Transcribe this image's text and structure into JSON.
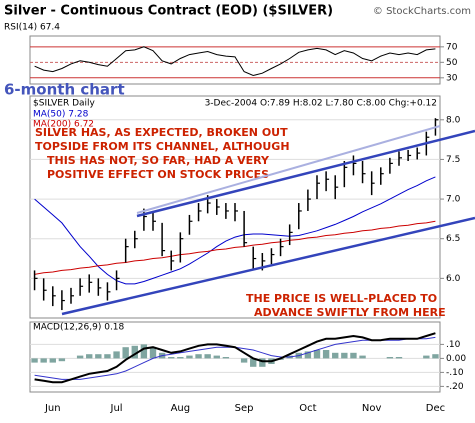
{
  "header": {
    "title": "Silver - Continuous Contract (EOD) ($SILVER)",
    "source": "© StockCharts.com"
  },
  "chart_data": [
    {
      "type": "line",
      "title": "RSI(14) 67.4",
      "ylim": [
        22,
        84
      ],
      "yticks": [
        30,
        50,
        70
      ],
      "color": "#000000",
      "values": [
        45,
        40,
        38,
        42,
        48,
        52,
        50,
        47,
        45,
        55,
        65,
        66,
        70,
        65,
        52,
        48,
        55,
        60,
        62,
        64,
        60,
        58,
        57,
        38,
        33,
        36,
        42,
        48,
        55,
        63,
        66,
        68,
        66,
        60,
        65,
        62,
        55,
        52,
        58,
        62,
        60,
        62,
        60,
        66,
        67.4
      ]
    },
    {
      "type": "hlc",
      "note": "6-month chart",
      "title": "$SILVER Daily",
      "subtitle": "3-Dec-2004 O:7.89 H:8.02 L:7.80 C:8.00 Chg:+0.12",
      "ylim": [
        5.5,
        8.3
      ],
      "yticks": [
        {
          "value": 6,
          "label": "6.0"
        },
        6.5,
        {
          "value": 7,
          "label": "7.0"
        },
        7.5,
        {
          "value": 8,
          "label": "8.0"
        }
      ],
      "color": "#000000",
      "high": [
        6.1,
        6.0,
        5.9,
        5.85,
        5.88,
        6.0,
        6.05,
        6.0,
        5.95,
        6.1,
        6.5,
        6.6,
        6.88,
        6.85,
        6.7,
        6.35,
        6.58,
        6.8,
        6.95,
        7.05,
        7.0,
        6.95,
        6.95,
        6.85,
        6.4,
        6.32,
        6.38,
        6.5,
        6.68,
        6.95,
        7.12,
        7.3,
        7.35,
        7.3,
        7.48,
        7.55,
        7.48,
        7.35,
        7.4,
        7.52,
        7.6,
        7.62,
        7.65,
        7.85,
        8.02
      ],
      "low": [
        5.85,
        5.72,
        5.65,
        5.6,
        5.68,
        5.78,
        5.82,
        5.78,
        5.72,
        5.85,
        6.2,
        6.38,
        6.6,
        6.6,
        6.28,
        6.1,
        6.2,
        6.55,
        6.72,
        6.82,
        6.8,
        6.75,
        6.72,
        6.4,
        6.12,
        6.1,
        6.18,
        6.28,
        6.42,
        6.62,
        6.85,
        7.0,
        7.1,
        7.0,
        7.15,
        7.3,
        7.2,
        7.05,
        7.18,
        7.32,
        7.42,
        7.48,
        7.5,
        7.55,
        7.8
      ],
      "close": [
        6.0,
        5.85,
        5.78,
        5.72,
        5.78,
        5.9,
        5.95,
        5.88,
        5.83,
        6.0,
        6.4,
        6.5,
        6.78,
        6.72,
        6.35,
        6.22,
        6.5,
        6.72,
        6.85,
        6.95,
        6.9,
        6.85,
        6.85,
        6.45,
        6.25,
        6.22,
        6.3,
        6.4,
        6.58,
        6.85,
        7.0,
        7.2,
        7.25,
        7.15,
        7.4,
        7.45,
        7.32,
        7.2,
        7.32,
        7.45,
        7.52,
        7.55,
        7.58,
        7.78,
        8.0
      ],
      "series": [
        {
          "name": "MA(50) 7.28",
          "color": "#0000cc",
          "values": [
            7.0,
            6.9,
            6.8,
            6.7,
            6.55,
            6.4,
            6.28,
            6.15,
            6.05,
            5.97,
            5.93,
            5.93,
            5.96,
            6.0,
            6.04,
            6.08,
            6.12,
            6.18,
            6.25,
            6.32,
            6.4,
            6.47,
            6.52,
            6.55,
            6.56,
            6.56,
            6.55,
            6.54,
            6.53,
            6.54,
            6.57,
            6.6,
            6.64,
            6.68,
            6.73,
            6.78,
            6.84,
            6.89,
            6.94,
            7.0,
            7.06,
            7.12,
            7.17,
            7.23,
            7.28
          ]
        },
        {
          "name": "MA(200) 6.72",
          "color": "#cc0000",
          "values": [
            6.05,
            6.07,
            6.08,
            6.1,
            6.11,
            6.13,
            6.14,
            6.16,
            6.17,
            6.19,
            6.2,
            6.22,
            6.23,
            6.25,
            6.26,
            6.28,
            6.3,
            6.31,
            6.33,
            6.34,
            6.36,
            6.37,
            6.39,
            6.4,
            6.42,
            6.43,
            6.45,
            6.46,
            6.48,
            6.49,
            6.51,
            6.52,
            6.54,
            6.55,
            6.57,
            6.58,
            6.6,
            6.61,
            6.63,
            6.64,
            6.66,
            6.67,
            6.69,
            6.7,
            6.72
          ]
        }
      ],
      "annotations": [
        [
          "SILVER HAS, AS EXPECTED, BROKEN OUT",
          "TOPSIDE FROM ITS CHANNEL, ALTHOUGH",
          "THIS HAS NOT, SO FAR, HAD  A VERY",
          "POSITIVE EFFECT ON STOCK PRICES"
        ],
        [
          "THE PRICE IS WELL-PLACED TO",
          "ADVANCE SWIFTLY FROM HERE"
        ]
      ]
    },
    {
      "type": "macd",
      "title": "MACD(12,26,9) 0.18",
      "ylim": [
        -0.24,
        0.26
      ],
      "yticks": [
        {
          "value": 0.1,
          "label": ".10"
        },
        {
          "value": 0,
          "label": "0.00"
        },
        {
          "value": -0.1,
          "label": "-.10"
        },
        {
          "value": -0.2,
          "label": "-.20"
        }
      ],
      "categories": [
        null,
        null,
        "Jun",
        null,
        null,
        null,
        null,
        null,
        null,
        "Jul",
        null,
        null,
        null,
        null,
        null,
        null,
        "Aug",
        null,
        null,
        null,
        null,
        null,
        null,
        "Sep",
        null,
        null,
        null,
        null,
        null,
        null,
        "Oct",
        null,
        null,
        null,
        null,
        null,
        null,
        "Nov",
        null,
        null,
        null,
        null,
        null,
        null,
        "Dec"
      ],
      "series": [
        {
          "color": "#000000",
          "values": [
            -0.15,
            -0.16,
            -0.17,
            -0.17,
            -0.15,
            -0.13,
            -0.11,
            -0.1,
            -0.09,
            -0.06,
            -0.01,
            0.03,
            0.07,
            0.08,
            0.06,
            0.04,
            0.05,
            0.07,
            0.09,
            0.1,
            0.1,
            0.09,
            0.08,
            0.04,
            0.0,
            -0.02,
            -0.02,
            0.0,
            0.03,
            0.06,
            0.09,
            0.12,
            0.14,
            0.14,
            0.15,
            0.16,
            0.15,
            0.13,
            0.13,
            0.14,
            0.14,
            0.14,
            0.14,
            0.16,
            0.18
          ]
        },
        {
          "color": "#3333cc",
          "values": [
            -0.12,
            -0.13,
            -0.14,
            -0.15,
            -0.15,
            -0.15,
            -0.14,
            -0.13,
            -0.12,
            -0.11,
            -0.09,
            -0.06,
            -0.03,
            0.0,
            0.02,
            0.03,
            0.04,
            0.05,
            0.06,
            0.07,
            0.08,
            0.08,
            0.08,
            0.07,
            0.06,
            0.04,
            0.02,
            0.01,
            0.01,
            0.02,
            0.04,
            0.06,
            0.08,
            0.1,
            0.11,
            0.12,
            0.13,
            0.13,
            0.13,
            0.13,
            0.13,
            0.14,
            0.14,
            0.14,
            0.15
          ]
        },
        {
          "color": "#7fa5a0",
          "values": [
            -0.03,
            -0.03,
            -0.03,
            -0.02,
            0,
            0.02,
            0.03,
            0.03,
            0.03,
            0.05,
            0.08,
            0.09,
            0.1,
            0.08,
            0.04,
            0.01,
            0.01,
            0.02,
            0.03,
            0.03,
            0.02,
            0.01,
            0,
            -0.03,
            -0.06,
            -0.06,
            -0.04,
            -0.01,
            0.02,
            0.04,
            0.05,
            0.06,
            0.06,
            0.04,
            0.04,
            0.04,
            0.02,
            0,
            0,
            0.01,
            0.01,
            0,
            0,
            0.02,
            0.03
          ]
        }
      ]
    }
  ]
}
